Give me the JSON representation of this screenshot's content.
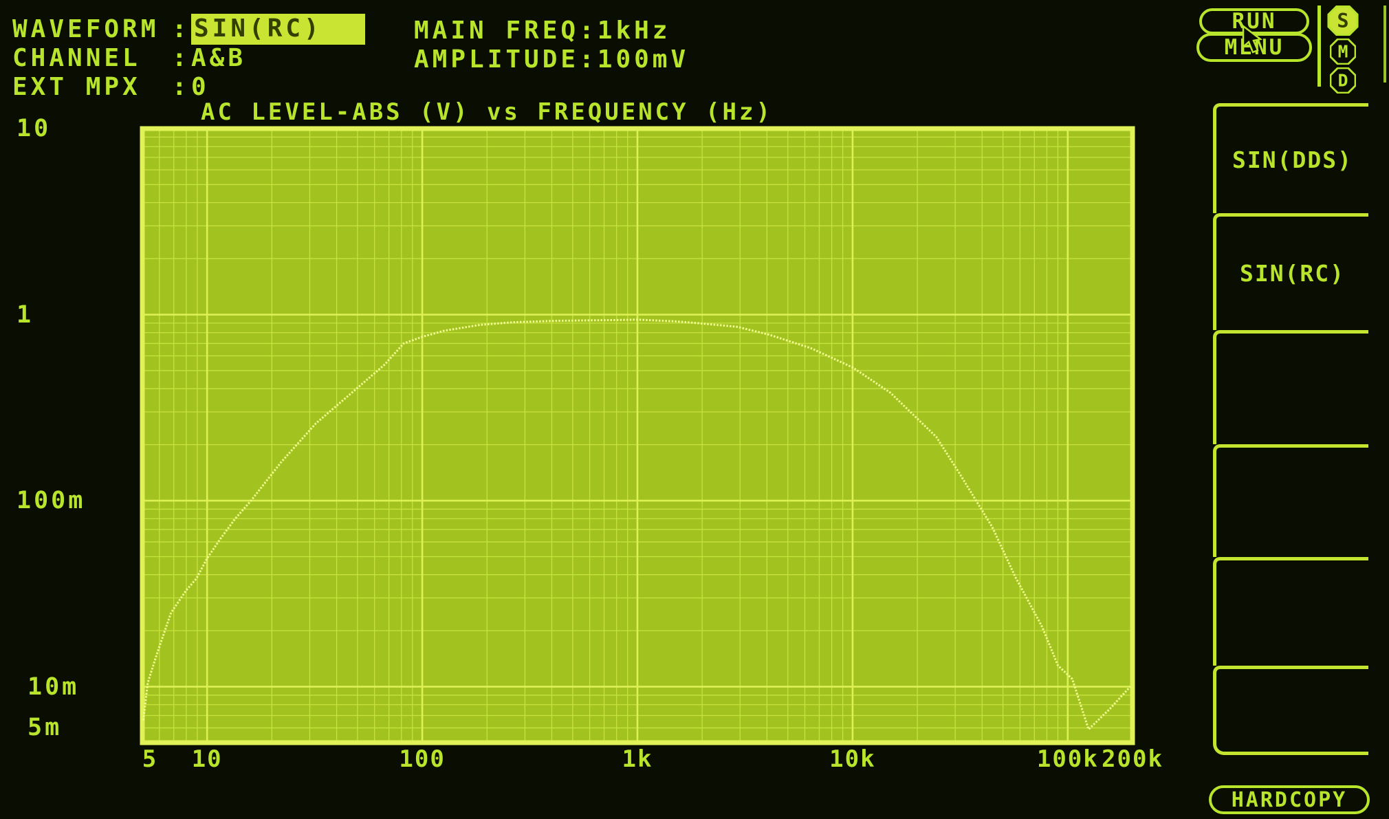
{
  "header": {
    "left_fields": [
      {
        "label": "WAVEFORM",
        "sep": ":",
        "value": "SIN(RC)",
        "highlighted": true
      },
      {
        "label": "CHANNEL",
        "sep": ":",
        "value": "A&B",
        "highlighted": false
      },
      {
        "label": "EXT MPX",
        "sep": ":",
        "value": "0",
        "highlighted": false
      }
    ],
    "right_fields": [
      {
        "label": "MAIN FREQ",
        "sep": ":",
        "value": "1kHz"
      },
      {
        "label": "AMPLITUDE",
        "sep": ":",
        "value": "100mV"
      }
    ],
    "run_button": "RUN",
    "menu_button": "MENU",
    "mode_badges": [
      "S",
      "M",
      "D"
    ]
  },
  "chart_data": {
    "type": "line",
    "title": "AC LEVEL-ABS (V) vs FREQUENCY (Hz)",
    "x_axis": {
      "label": "FREQUENCY (Hz)",
      "scale": "log",
      "min": 5,
      "max": 200000,
      "ticks": [
        {
          "label": "5",
          "value": 5
        },
        {
          "label": "10",
          "value": 10
        },
        {
          "label": "100",
          "value": 100
        },
        {
          "label": "1k",
          "value": 1000
        },
        {
          "label": "10k",
          "value": 10000
        },
        {
          "label": "100k",
          "value": 100000
        },
        {
          "label": "200k",
          "value": 200000
        }
      ]
    },
    "y_axis": {
      "label": "AC LEVEL-ABS (V)",
      "scale": "log",
      "min": 0.005,
      "max": 10,
      "ticks": [
        {
          "label": "10",
          "value": 10
        },
        {
          "label": "1",
          "value": 1
        },
        {
          "label": "100m",
          "value": 0.1
        },
        {
          "label": "10m",
          "value": 0.01
        },
        {
          "label": "5m",
          "value": 0.005
        }
      ]
    },
    "grid": true,
    "legend": "none",
    "series": [
      {
        "name": "AC LEVEL-ABS response",
        "points": [
          [
            5.05,
            0.0066
          ],
          [
            5.3,
            0.0105
          ],
          [
            5.9,
            0.0155
          ],
          [
            6.8,
            0.025
          ],
          [
            8.0,
            0.033
          ],
          [
            8.9,
            0.038
          ],
          [
            10,
            0.049
          ],
          [
            11.6,
            0.063
          ],
          [
            13.5,
            0.08
          ],
          [
            16,
            0.1
          ],
          [
            22,
            0.16
          ],
          [
            32,
            0.26
          ],
          [
            47,
            0.38
          ],
          [
            67,
            0.54
          ],
          [
            82,
            0.7
          ],
          [
            100,
            0.76
          ],
          [
            127,
            0.82
          ],
          [
            185,
            0.88
          ],
          [
            266,
            0.91
          ],
          [
            400,
            0.925
          ],
          [
            550,
            0.93
          ],
          [
            800,
            0.935
          ],
          [
            1000,
            0.94
          ],
          [
            1500,
            0.92
          ],
          [
            1900,
            0.9
          ],
          [
            2900,
            0.86
          ],
          [
            4100,
            0.78
          ],
          [
            6400,
            0.66
          ],
          [
            10000,
            0.52
          ],
          [
            15000,
            0.38
          ],
          [
            24500,
            0.22
          ],
          [
            31400,
            0.14
          ],
          [
            44600,
            0.072
          ],
          [
            57000,
            0.039
          ],
          [
            76000,
            0.021
          ],
          [
            90000,
            0.013
          ],
          [
            105000,
            0.011
          ],
          [
            125000,
            0.0059
          ],
          [
            157000,
            0.0076
          ],
          [
            195000,
            0.01
          ]
        ]
      }
    ]
  },
  "sidebar": {
    "softkeys": [
      "SIN(DDS)",
      "SIN(RC)",
      "",
      "",
      "",
      ""
    ],
    "hardcopy_button": "HARDCOPY"
  },
  "colors": {
    "background": "#0a0e02",
    "foreground": "#b9e42c",
    "plot_background": "#a2c31f",
    "grid_minor": "#c8e23e",
    "grid_major": "#ddf055",
    "plot_border": "#e0f257",
    "curve": "#f1fc90",
    "highlight_bg": "#c9e433",
    "highlight_text": "#333f00"
  }
}
